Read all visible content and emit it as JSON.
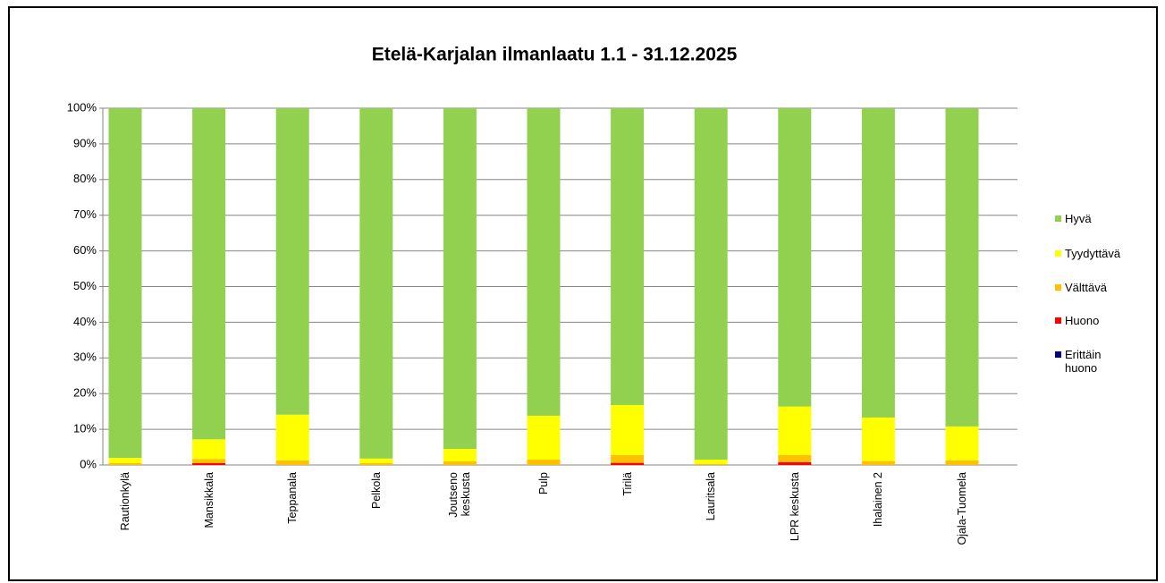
{
  "chart_data": {
    "type": "stacked_bar",
    "title": "Etelä-Karjalan ilmanlaatu 1.1 - 31.12.2025",
    "categories": [
      "Rautionkylä",
      "Mansikkala",
      "Teppanala",
      "Pelkola",
      "Joutseno keskusta",
      "Pulp",
      "Tirilä",
      "Lauritsala",
      "LPR keskusta",
      "Ihalainen 2",
      "Ojala-Tuomela"
    ],
    "series": [
      {
        "name": "Erittäin huono",
        "color": "#000080",
        "values": [
          0,
          0,
          0,
          0,
          0,
          0,
          0,
          0,
          0,
          0,
          0
        ]
      },
      {
        "name": "Huono",
        "color": "#ff0000",
        "values": [
          0,
          0.5,
          0,
          0,
          0,
          0,
          0.6,
          0,
          0.8,
          0,
          0
        ]
      },
      {
        "name": "Välttävä",
        "color": "#ffc000",
        "values": [
          0.5,
          1.2,
          1.3,
          0.5,
          1,
          1.5,
          2.2,
          0.3,
          2,
          1.1,
          1.3
        ]
      },
      {
        "name": "Tyydyttävä",
        "color": "#ffff00",
        "values": [
          1.5,
          5.5,
          12.8,
          1.3,
          3.5,
          12.3,
          14,
          1.2,
          13.6,
          12.2,
          9.5
        ]
      },
      {
        "name": "Hyvä",
        "color": "#92d050",
        "values": [
          98,
          92.8,
          85.9,
          98.2,
          95.5,
          86.2,
          83.2,
          98.5,
          83.6,
          86.7,
          89.2
        ]
      }
    ],
    "ylim": [
      0,
      100
    ],
    "yticks": [
      {
        "value": 0,
        "label": "0%"
      },
      {
        "value": 10,
        "label": "10%"
      },
      {
        "value": 20,
        "label": "20%"
      },
      {
        "value": 30,
        "label": "30%"
      },
      {
        "value": 40,
        "label": "40%"
      },
      {
        "value": 50,
        "label": "50%"
      },
      {
        "value": 60,
        "label": "60%"
      },
      {
        "value": 70,
        "label": "70%"
      },
      {
        "value": 80,
        "label": "80%"
      },
      {
        "value": 90,
        "label": "90%"
      },
      {
        "value": 100,
        "label": "100%"
      }
    ],
    "grid": true,
    "legend": "right"
  }
}
